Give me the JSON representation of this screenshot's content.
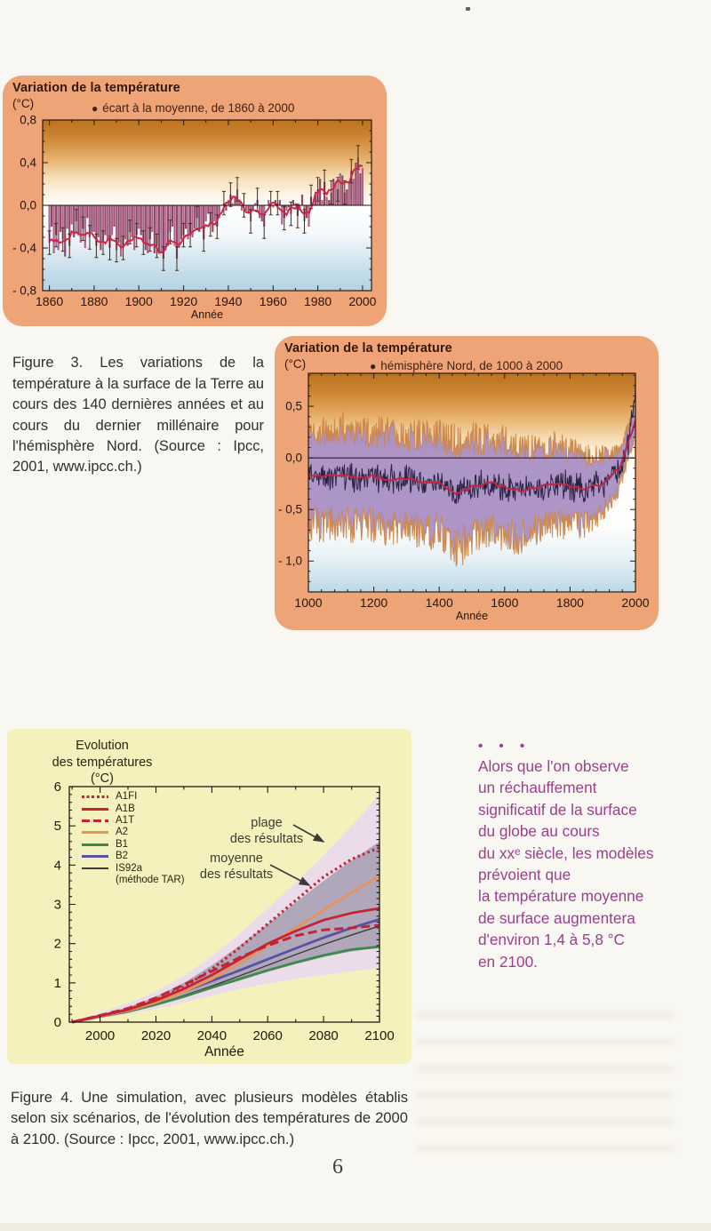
{
  "page": {
    "number": "6"
  },
  "captions": {
    "figure3": "Figure 3. Les variations de la température à la surface de la Terre au cours des 140 dernières années et au cours du dernier millénaire pour l'hémisphère Nord. (Source : Ipcc, 2001, www.ipcc.ch.)",
    "figure4": "Figure 4. Une simulation, avec plusieurs modèles établis selon six scénarios, de l'évolution des températures de 2000 à 2100. (Source : Ipcc, 2001, www.ipcc.ch.)"
  },
  "sidebar_note": {
    "dots": "• • •",
    "text": "Alors que l'on observe\nun réchauffement\nsignificatif de la surface\ndu globe au cours\ndu xxᵉ siècle, les modèles\nprévoient que\nla température moyenne\nde surface augmentera\nd'environ 1,4 à 5,8 °C\nen 2100.",
    "color": "#9c3f8e"
  },
  "chart_data": [
    {
      "id": "fig3a",
      "type": "bar",
      "title": "Variation de la température",
      "unit": "(°C)",
      "legend_marker": "●",
      "legend": "écart à la moyenne, de 1860 à 2000",
      "xlabel": "Année",
      "x_start": 1860,
      "x_step": 1,
      "x_ticks": [
        1860,
        1880,
        1900,
        1920,
        1940,
        1960,
        1980,
        2000
      ],
      "y_ticks": [
        {
          "v": 0.8,
          "label": "0,8"
        },
        {
          "v": 0.4,
          "label": "0,4"
        },
        {
          "v": 0.0,
          "label": "0,0"
        },
        {
          "v": -0.4,
          "label": "- 0,4"
        },
        {
          "v": -0.8,
          "label": "- 0,8"
        }
      ],
      "ylim": [
        -0.8,
        0.8
      ],
      "error_bar": 0.11,
      "values": [
        -0.35,
        -0.2,
        -0.45,
        -0.28,
        -0.42,
        -0.25,
        -0.32,
        -0.48,
        -0.22,
        -0.38,
        -0.18,
        -0.3,
        -0.15,
        -0.28,
        -0.35,
        -0.22,
        -0.4,
        -0.12,
        -0.3,
        -0.25,
        -0.25,
        -0.38,
        -0.3,
        -0.42,
        -0.35,
        -0.28,
        -0.33,
        -0.4,
        -0.28,
        -0.2,
        -0.42,
        -0.35,
        -0.48,
        -0.4,
        -0.32,
        -0.38,
        -0.25,
        -0.3,
        -0.42,
        -0.28,
        -0.22,
        -0.28,
        -0.35,
        -0.42,
        -0.45,
        -0.32,
        -0.25,
        -0.45,
        -0.38,
        -0.45,
        -0.45,
        -0.5,
        -0.42,
        -0.38,
        -0.25,
        -0.2,
        -0.38,
        -0.5,
        -0.4,
        -0.32,
        -0.28,
        -0.22,
        -0.32,
        -0.28,
        -0.3,
        -0.22,
        -0.12,
        -0.25,
        -0.2,
        -0.32,
        -0.15,
        -0.08,
        -0.18,
        -0.25,
        -0.15,
        -0.2,
        -0.12,
        0.0,
        0.02,
        -0.05,
        0.05,
        0.1,
        0.02,
        0.08,
        0.15,
        0.05,
        -0.05,
        0.0,
        -0.05,
        -0.08,
        -0.15,
        -0.05,
        0.02,
        0.05,
        -0.12,
        -0.15,
        -0.2,
        0.0,
        0.05,
        0.02,
        -0.02,
        0.05,
        0.02,
        0.05,
        -0.18,
        -0.12,
        -0.05,
        -0.02,
        -0.08,
        0.05,
        0.02,
        -0.1,
        -0.05,
        0.1,
        -0.15,
        -0.12,
        -0.2,
        0.08,
        0.02,
        0.1,
        0.15,
        0.25,
        0.05,
        0.22,
        0.08,
        0.05,
        0.12,
        0.25,
        0.22,
        0.15,
        0.3,
        0.28,
        0.12,
        0.15,
        0.22,
        0.32,
        0.25,
        0.4,
        0.45,
        0.3,
        0.35
      ],
      "colors": {
        "panel": "#efa477",
        "bar": "#b06388",
        "bar_alt": "#8f4a6c",
        "whisker": "#42301a",
        "line": "#d2234a",
        "axis": "#2b1a0e"
      }
    },
    {
      "id": "fig3b",
      "type": "band-line",
      "title": "Variation de la température",
      "unit": "(°C)",
      "legend_marker": "●",
      "legend": "hémisphère Nord, de 1000 à 2000",
      "xlabel": "Année",
      "x_ticks": [
        1000,
        1200,
        1400,
        1600,
        1800,
        2000
      ],
      "y_ticks": [
        {
          "v": 0.5,
          "label": "0,5"
        },
        {
          "v": 0.0,
          "label": "0,0"
        },
        {
          "v": -0.5,
          "label": "- 0,5"
        },
        {
          "v": -1.0,
          "label": "- 1,0"
        }
      ],
      "ylim": [
        -1.3,
        0.82
      ],
      "smooth_x_start": 1000,
      "smooth_x_step": 50,
      "smooth": [
        -0.15,
        -0.18,
        -0.16,
        -0.2,
        -0.18,
        -0.22,
        -0.2,
        -0.25,
        -0.22,
        -0.35,
        -0.28,
        -0.25,
        -0.28,
        -0.32,
        -0.28,
        -0.25,
        -0.28,
        -0.3,
        -0.25,
        -0.1,
        0.35
      ],
      "band_half": [
        0.55,
        0.52,
        0.55,
        0.5,
        0.52,
        0.55,
        0.5,
        0.55,
        0.52,
        0.6,
        0.55,
        0.5,
        0.52,
        0.5,
        0.45,
        0.45,
        0.42,
        0.38,
        0.32,
        0.22,
        0.15
      ],
      "noise_seed": 12,
      "colors": {
        "panel": "#efa477",
        "band": "#a78cc2",
        "band_edge": "#cc8440",
        "annual": "#2a2342",
        "line": "#c42445",
        "axis": "#2b1a0e"
      }
    },
    {
      "id": "fig4",
      "type": "line",
      "title": "Evolution\ndes températures\n(°C)",
      "xlabel": "Année",
      "xlim": [
        1989,
        2100
      ],
      "ylim": [
        0,
        6
      ],
      "x": [
        1990,
        2000,
        2010,
        2020,
        2030,
        2040,
        2050,
        2060,
        2070,
        2080,
        2090,
        2100
      ],
      "x_ticks": [
        2000,
        2020,
        2040,
        2060,
        2080,
        2100
      ],
      "y_ticks": [
        0,
        1,
        2,
        3,
        4,
        5,
        6
      ],
      "series": [
        {
          "name": "A1FI",
          "color": "#c32433",
          "line_style": "dotted",
          "values": [
            0,
            0.16,
            0.32,
            0.56,
            0.9,
            1.35,
            1.9,
            2.5,
            3.1,
            3.7,
            4.15,
            4.45
          ]
        },
        {
          "name": "A1B",
          "color": "#c32433",
          "line_style": "solid",
          "values": [
            0,
            0.16,
            0.32,
            0.55,
            0.85,
            1.2,
            1.6,
            2.0,
            2.32,
            2.6,
            2.78,
            2.9
          ]
        },
        {
          "name": "A1T",
          "color": "#c32433",
          "line_style": "dashed",
          "values": [
            0,
            0.17,
            0.35,
            0.62,
            0.95,
            1.3,
            1.65,
            1.95,
            2.2,
            2.35,
            2.4,
            2.47
          ]
        },
        {
          "name": "A2",
          "color": "#e6925a",
          "line_style": "solid",
          "values": [
            0,
            0.15,
            0.29,
            0.5,
            0.78,
            1.1,
            1.5,
            1.95,
            2.4,
            2.85,
            3.3,
            3.72
          ]
        },
        {
          "name": "B1",
          "color": "#3d8a4d",
          "line_style": "solid",
          "values": [
            0,
            0.14,
            0.27,
            0.45,
            0.65,
            0.88,
            1.1,
            1.32,
            1.52,
            1.7,
            1.85,
            1.92
          ]
        },
        {
          "name": "B2",
          "color": "#5852a2",
          "line_style": "solid",
          "values": [
            0,
            0.15,
            0.3,
            0.52,
            0.78,
            1.05,
            1.32,
            1.6,
            1.88,
            2.15,
            2.4,
            2.62
          ]
        },
        {
          "name": "IS92a",
          "sublabel": "(méthode TAR)",
          "color": "#3c3c38",
          "line_style": "thin",
          "values": [
            0,
            0.13,
            0.26,
            0.45,
            0.68,
            0.92,
            1.18,
            1.45,
            1.72,
            1.98,
            2.22,
            2.45
          ]
        }
      ],
      "bands": [
        {
          "name": "plage des résultats",
          "fill": "#ecdcea",
          "upper": [
            0,
            0.25,
            0.48,
            0.78,
            1.18,
            1.68,
            2.25,
            2.9,
            3.55,
            4.25,
            5.0,
            5.8
          ],
          "lower": [
            0,
            0.1,
            0.2,
            0.34,
            0.5,
            0.68,
            0.84,
            0.98,
            1.1,
            1.2,
            1.3,
            1.36
          ]
        },
        {
          "name": "moyenne des résultats",
          "fill": "#a69db2",
          "upper": [
            0,
            0.19,
            0.38,
            0.65,
            1.0,
            1.45,
            1.95,
            2.5,
            3.05,
            3.6,
            4.12,
            4.6
          ],
          "lower": [
            0,
            0.12,
            0.25,
            0.42,
            0.62,
            0.85,
            1.06,
            1.28,
            1.48,
            1.66,
            1.8,
            1.9
          ]
        }
      ],
      "annotations": [
        {
          "text": "plage\ndes résultats"
        },
        {
          "text": "moyenne\ndes résultats"
        }
      ],
      "colors": {
        "panel": "#f5f1bd",
        "axis": "#1f1a10"
      }
    }
  ]
}
